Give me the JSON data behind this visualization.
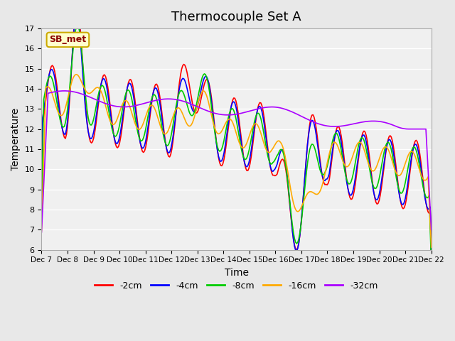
{
  "title": "Thermocouple Set A",
  "xlabel": "Time",
  "ylabel": "Temperature",
  "ylim": [
    6.0,
    17.0
  ],
  "yticks": [
    6.0,
    7.0,
    8.0,
    9.0,
    10.0,
    11.0,
    12.0,
    13.0,
    14.0,
    15.0,
    16.0,
    17.0
  ],
  "xtick_labels": [
    "Dec 7",
    "Dec 8",
    "Dec 9",
    "Dec 10",
    "Dec 11",
    "Dec 12",
    "Dec 13",
    "Dec 14",
    "Dec 15",
    "Dec 16",
    "Dec 17",
    "Dec 18",
    "Dec 19",
    "Dec 20",
    "Dec 21",
    "Dec 22"
  ],
  "series_colors": [
    "#ff0000",
    "#0000ff",
    "#00cc00",
    "#ffaa00",
    "#aa00ff"
  ],
  "series_labels": [
    "-2cm",
    "-4cm",
    "-8cm",
    "-16cm",
    "-32cm"
  ],
  "annotation_text": "SB_met",
  "annotation_bg": "#ffffcc",
  "annotation_border": "#ccaa00",
  "background_color": "#e8e8e8",
  "plot_bg_color": "#f0f0f0",
  "title_fontsize": 13,
  "axis_fontsize": 10,
  "legend_fontsize": 9
}
